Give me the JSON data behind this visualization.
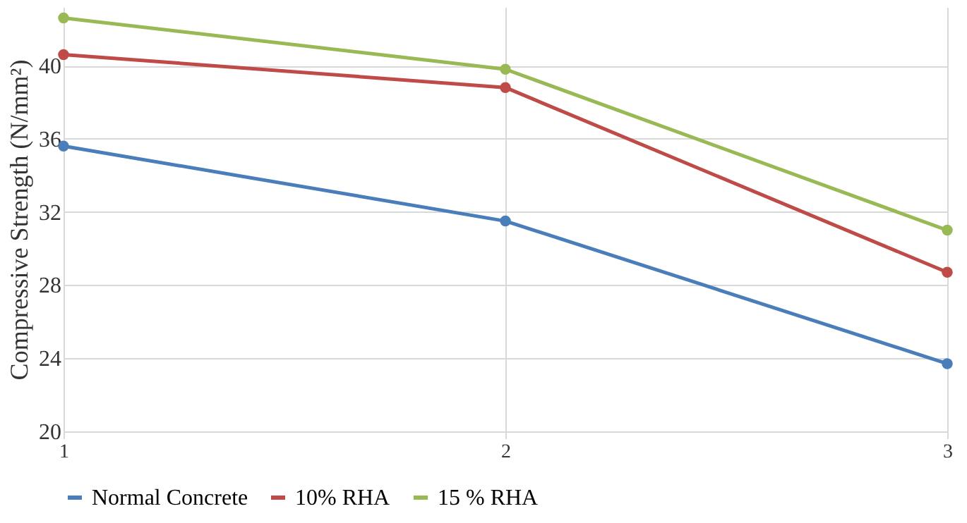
{
  "chart_data": {
    "type": "line",
    "ylabel": "Compressive Strength (N/mm²)",
    "x": [
      1,
      2,
      3
    ],
    "xlim": [
      1,
      3
    ],
    "xticks": [
      1,
      2,
      3
    ],
    "ylim": [
      20,
      43.2
    ],
    "yticks": [
      20,
      24,
      28,
      32,
      36,
      40
    ],
    "grid": true,
    "legend": "bottom",
    "marker": "circle",
    "line_style": "solid",
    "series": [
      {
        "name": "Normal Concrete",
        "color": "#4a7ebb",
        "values": [
          35.6,
          31.5,
          23.7
        ]
      },
      {
        "name": "10% RHA",
        "color": "#be4b48",
        "values": [
          40.6,
          38.8,
          28.7
        ]
      },
      {
        "name": "15 % RHA",
        "color": "#98b954",
        "values": [
          42.6,
          39.8,
          31.0
        ]
      }
    ]
  }
}
